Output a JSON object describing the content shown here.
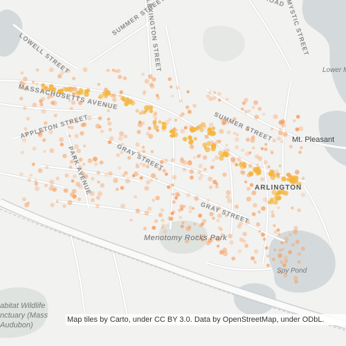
{
  "map": {
    "colors": {
      "background": "#f2f2f0",
      "water": "#d4dadc",
      "park": "#dfe3df",
      "road": "#ffffff",
      "road_casing": "#dcdcdc",
      "highway": "#fafafa",
      "dot": "#f8a060",
      "dot_hot": "#f5b43a"
    },
    "labels": {
      "massachusetts_ave": "MASSACHUSETTS AVENUE",
      "lowell_street": "LOWELL STREET",
      "summer_street_west": "SUMMER STREET",
      "summer_street_east": "SUMMER STREET",
      "appleton_street": "APPLETON STREET",
      "park_avenue": "PARK AVENUE",
      "gray_street_north": "GRAY STREET",
      "gray_street_south": "GRAY STREET",
      "lexington_street": "LEXINGTON STREET",
      "mystic_street": "MYSTIC STREET",
      "road_fragment": "ROAD",
      "mt_pleasant": "Mt. Pleasant",
      "arlington": "ARLINGTON",
      "menotomy_rocks_park": "Menotomy Rocks Park",
      "spy_pond": "Spy Pond",
      "lower_mystic": "Lower M",
      "habitat_line1": "abitat Wildlife",
      "habitat_line2": "nctuary (Mass",
      "habitat_line3": "Audubon)"
    },
    "attribution": "Map tiles by Carto, under CC BY 3.0. Data by OpenStreetMap, under ODbL."
  }
}
